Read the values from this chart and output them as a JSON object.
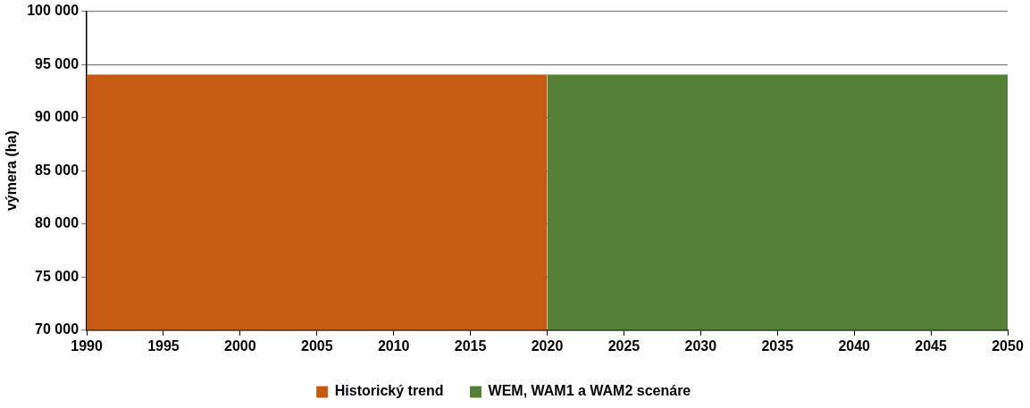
{
  "chart_data": {
    "type": "area",
    "ylabel": "výmera (ha)",
    "series": [
      {
        "name": "Historický trend",
        "color": "#c55a11",
        "x": [
          1990,
          2020
        ],
        "values": [
          94000,
          94000
        ]
      },
      {
        "name": "WEM, WAM1 a WAM2 scenáre",
        "color": "#538135",
        "x": [
          2020,
          2050
        ],
        "values": [
          94000,
          94000
        ]
      }
    ],
    "xlim": [
      1990,
      2050
    ],
    "xticks": [
      1990,
      1995,
      2000,
      2005,
      2010,
      2015,
      2020,
      2025,
      2030,
      2035,
      2040,
      2045,
      2050
    ],
    "ylim": [
      70000,
      100000
    ],
    "yticks": [
      {
        "value": 70000,
        "label": "70 000"
      },
      {
        "value": 75000,
        "label": "75 000"
      },
      {
        "value": 80000,
        "label": "80 000"
      },
      {
        "value": 85000,
        "label": "85 000"
      },
      {
        "value": 90000,
        "label": "90 000"
      },
      {
        "value": 95000,
        "label": "95 000"
      },
      {
        "value": 100000,
        "label": "100 000"
      }
    ],
    "grid": "y",
    "legend": "bottom"
  }
}
